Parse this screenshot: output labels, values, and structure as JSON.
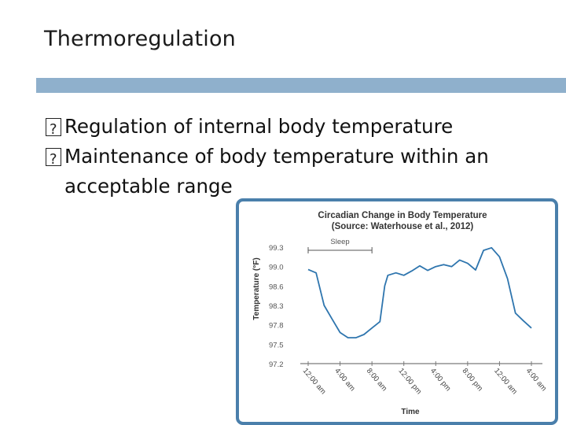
{
  "slide": {
    "title": "Thermoregulation",
    "bullets": [
      "Regulation of internal body temperature",
      "Maintenance of body temperature within an acceptable range"
    ]
  },
  "chart_data": {
    "type": "line",
    "title": "Circadian Change in Body Temperature",
    "subtitle": "(Source: Waterhouse et al., 2012)",
    "xlabel": "Time",
    "ylabel": "Temperature (°F)",
    "x_ticks": [
      "12:00 am",
      "4:00 am",
      "8:00 am",
      "12:00 pm",
      "4:00 pm",
      "8:00 pm",
      "12:00 am",
      "4:00 am"
    ],
    "y_ticks": [
      "99.3",
      "99.0",
      "98.6",
      "98.3",
      "97.8",
      "97.5",
      "97.2"
    ],
    "annotation": {
      "label": "Sleep",
      "from_hour": 0,
      "to_hour": 8
    },
    "series": [
      {
        "x_hours": [
          0,
          1,
          2,
          3,
          4,
          5,
          6,
          7,
          8,
          9,
          9.6,
          10,
          11,
          12,
          13,
          14,
          15,
          16,
          17,
          18,
          19,
          20,
          21,
          22,
          23,
          24,
          25,
          26,
          27,
          28
        ],
        "temperature_f": [
          98.94,
          98.87,
          98.3,
          97.95,
          97.68,
          97.6,
          97.6,
          97.65,
          97.75,
          97.88,
          98.6,
          98.82,
          98.87,
          98.82,
          98.91,
          99.01,
          98.92,
          99.0,
          99.03,
          99.0,
          99.1,
          99.05,
          98.93,
          99.25,
          99.29,
          99.15,
          98.75,
          98.1,
          97.9,
          97.75
        ]
      }
    ],
    "ylim": [
      97.2,
      99.45
    ],
    "xlim": [
      0,
      28
    ],
    "line_color": "#2e75ae",
    "frame_color": "#4a7fab",
    "grid": false
  }
}
